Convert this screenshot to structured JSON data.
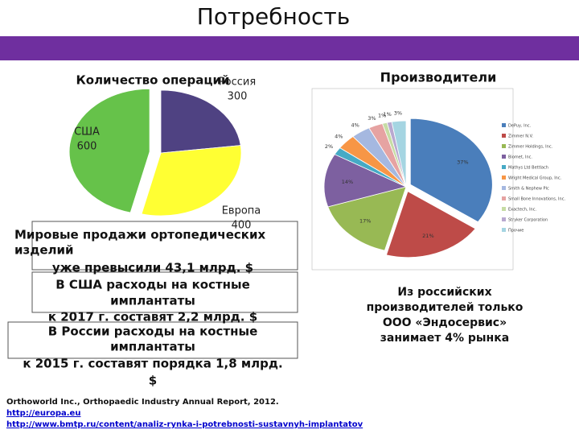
{
  "title": "Потребность",
  "chart_data": [
    {
      "type": "pie",
      "title": "Количество операций",
      "categories": [
        "Россия",
        "Европа",
        "США"
      ],
      "values": [
        300,
        400,
        600
      ],
      "colors": [
        "#4f4282",
        "#ffff33",
        "#66c24a"
      ]
    },
    {
      "type": "pie",
      "title": "Производители",
      "categories": [
        "DePuy, Inc.",
        "Zimmer N.V.",
        "Zimmer Holdings, Inc.",
        "Biomet, Inc.",
        "Mathys Ltd Bettlach",
        "Wright Medical Group, Inc.",
        "Smith & Nephew Plc",
        "Small Bone Innovations, Inc.",
        "Exactech, Inc.",
        "Stryker Corporation",
        "Прочие"
      ],
      "values": [
        37,
        21,
        17,
        14,
        2,
        4,
        4,
        3,
        1,
        1,
        3
      ],
      "value_labels": [
        "37%",
        "21%",
        "17%",
        "14%",
        "2%",
        "4%",
        "4%",
        "3%",
        "1%",
        "1%",
        "3%"
      ],
      "colors": [
        "#4a7ebb",
        "#be4b48",
        "#98b954",
        "#7d60a0",
        "#46aac5",
        "#f79646",
        "#a5b8e0",
        "#e6a3a2",
        "#c6dca4",
        "#b9a9d0",
        "#a5d5e2"
      ]
    }
  ],
  "left_text": [
    "Мировые продажи ортопедических",
    "изделий",
    "уже превысили 43,1 млрд. $",
    "В США расходы на костные",
    "имплантаты",
    "к 2017 г. составят  2,2 млрд. $",
    "В России расходы на костные",
    "имплантаты",
    "к 2015 г. составят  порядка 1,8 млрд.",
    "$"
  ],
  "right_text": [
    "Из российских",
    "производителей  только",
    "ООО «Эндосервис»",
    "занимает 4% рынка"
  ],
  "sources": [
    "Orthoworld Inc., Orthopaedic Industry Annual Report, 2012.",
    "http://europa.eu",
    "http://www.bmtp.ru/content/analiz-rynka-i-potrebnosti-sustavnyh-implantatov"
  ]
}
